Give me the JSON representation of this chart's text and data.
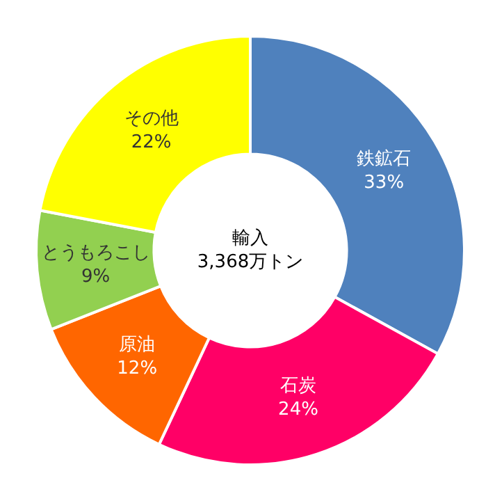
{
  "chart_data": {
    "type": "donut",
    "title": "輸入",
    "subtitle": "3,368万トン",
    "categories": [
      "鉄鉱石",
      "石炭",
      "原油",
      "とうもろこし",
      "その他"
    ],
    "values": [
      33,
      24,
      12,
      9,
      22
    ],
    "value_labels": [
      "33%",
      "24%",
      "12%",
      "9%",
      "22%"
    ],
    "colors": [
      "#4f81bd",
      "#ff0066",
      "#ff6600",
      "#92d050",
      "#ffff00"
    ],
    "legend": false
  }
}
